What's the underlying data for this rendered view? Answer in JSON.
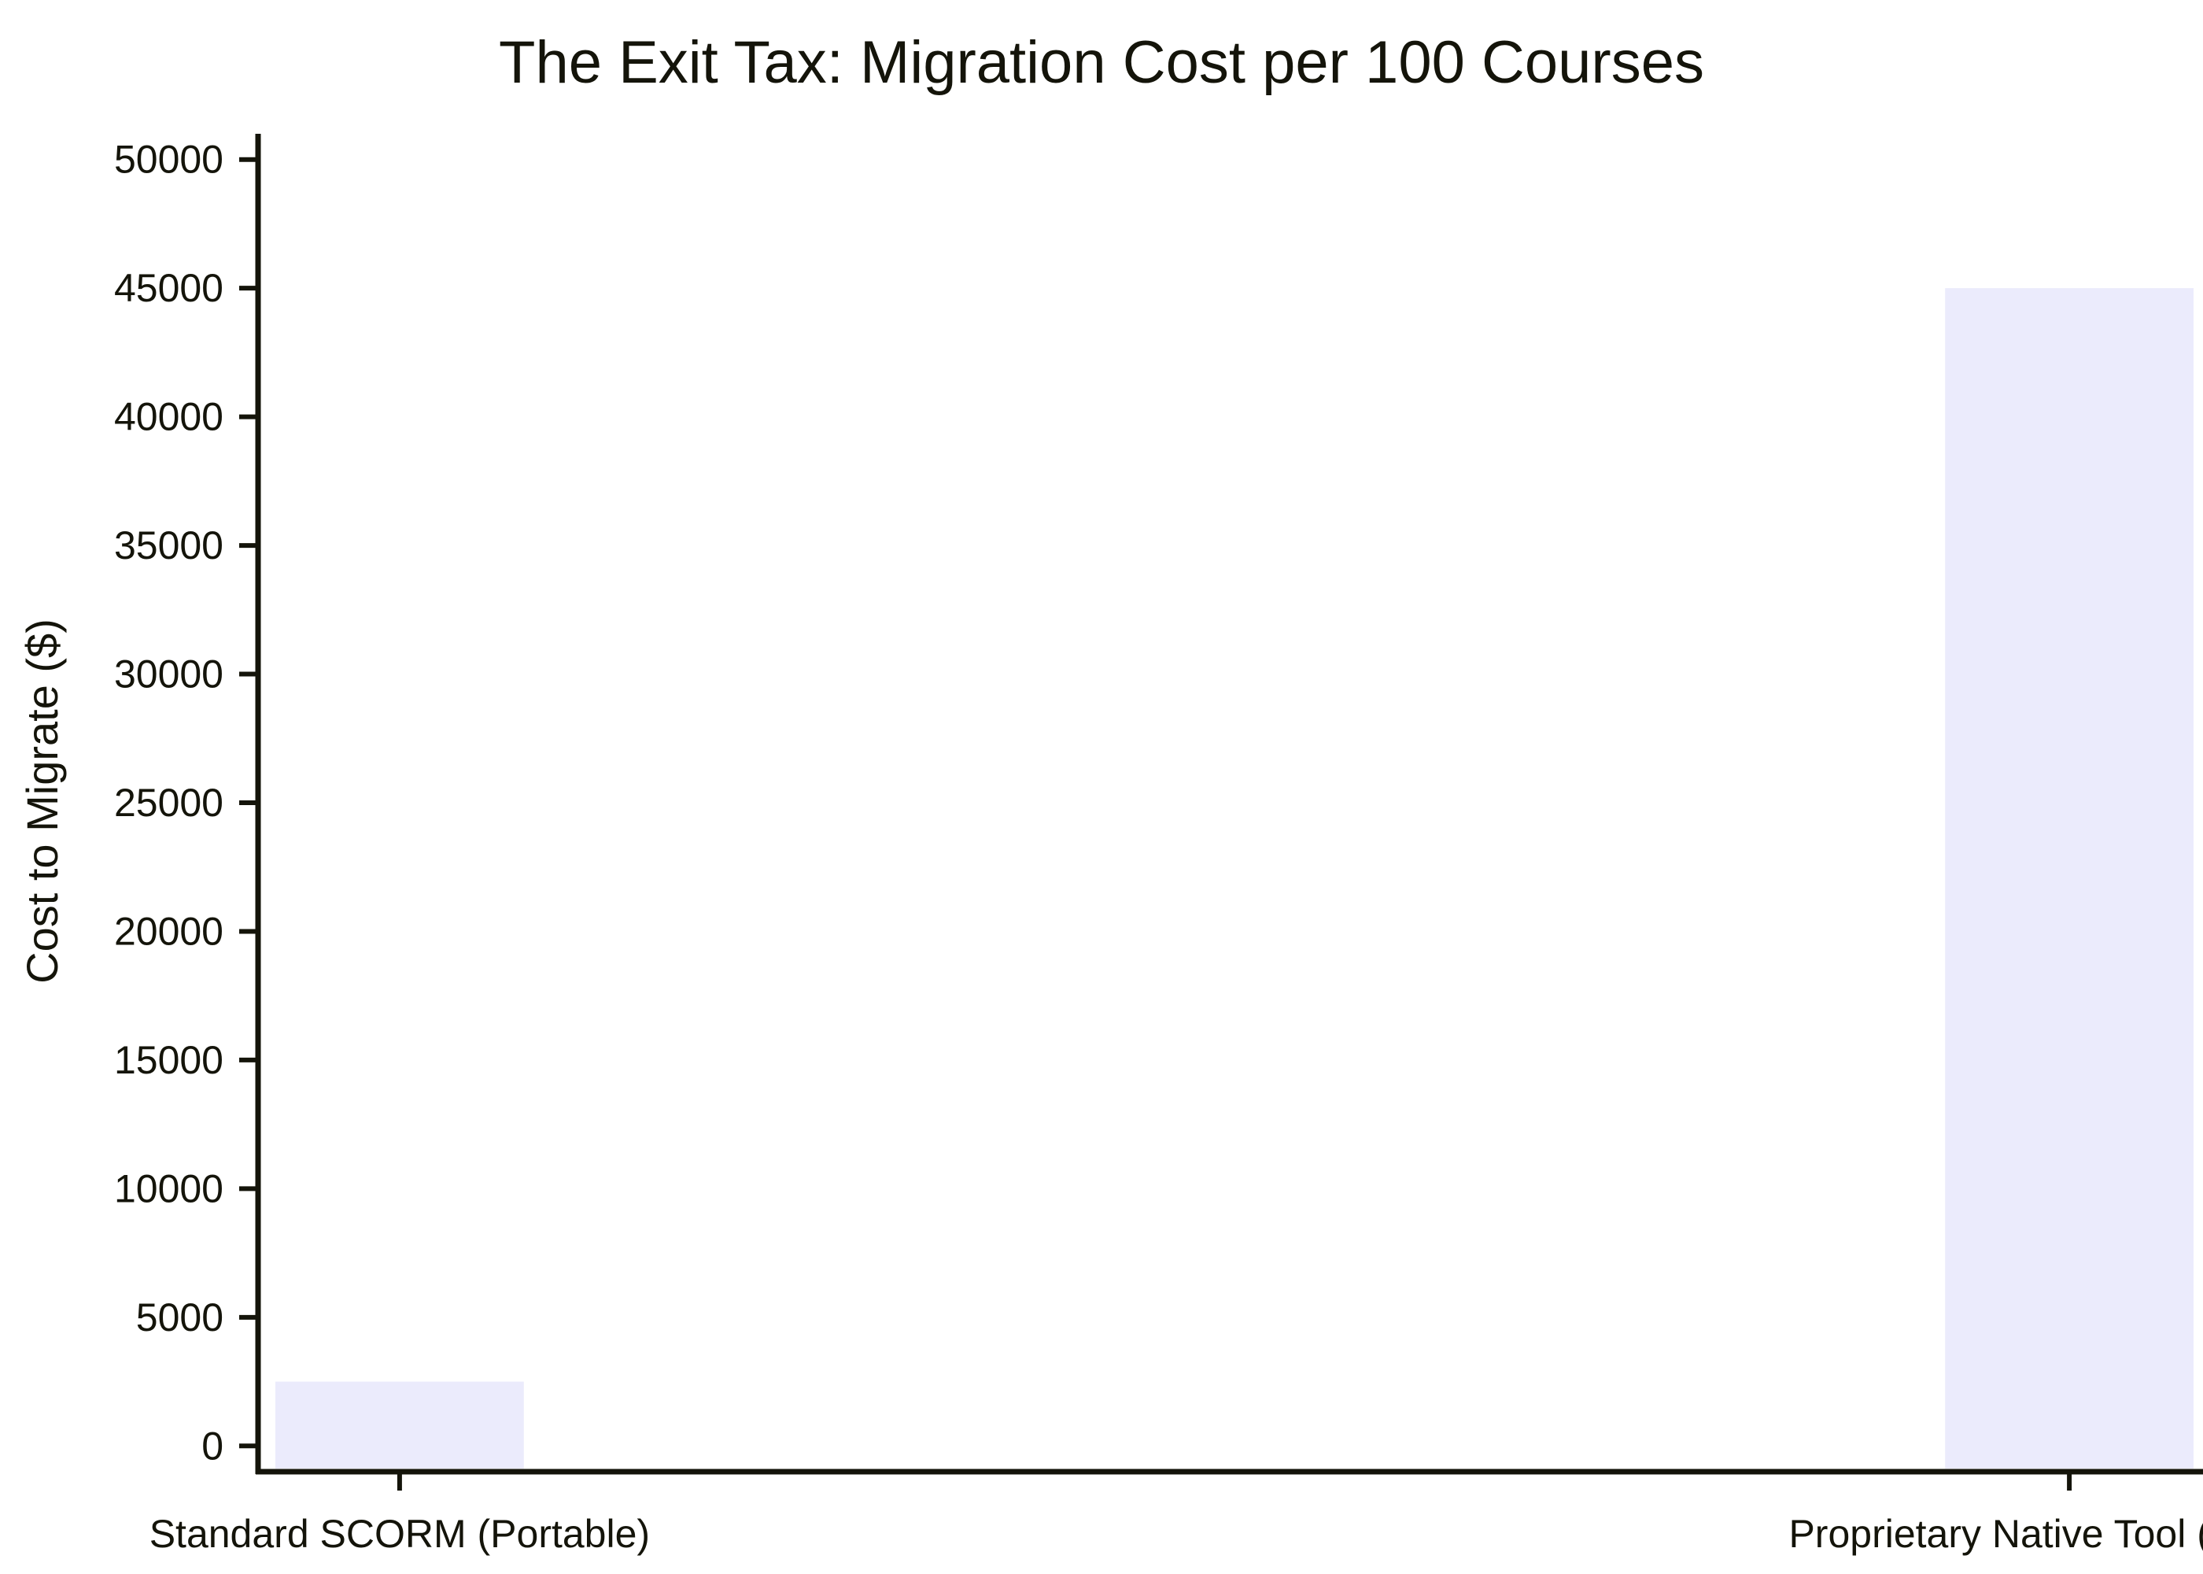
{
  "chart_data": {
    "type": "bar",
    "title": "The Exit Tax: Migration Cost per 100 Courses",
    "xlabel": "",
    "ylabel": "Cost to Migrate ($)",
    "categories": [
      "Standard SCORM (Portable)",
      "Proprietary Native Tool (Locked)"
    ],
    "values": [
      2500,
      45000
    ],
    "ylim": [
      -1000,
      51000
    ],
    "yticks": [
      0,
      5000,
      10000,
      15000,
      20000,
      25000,
      30000,
      35000,
      40000,
      45000,
      50000
    ],
    "grid": false,
    "legend": "none",
    "colors": {
      "bar": "#ebebfc",
      "axis": "#14140a",
      "text": "#14140a",
      "background": "#ffffff"
    }
  }
}
